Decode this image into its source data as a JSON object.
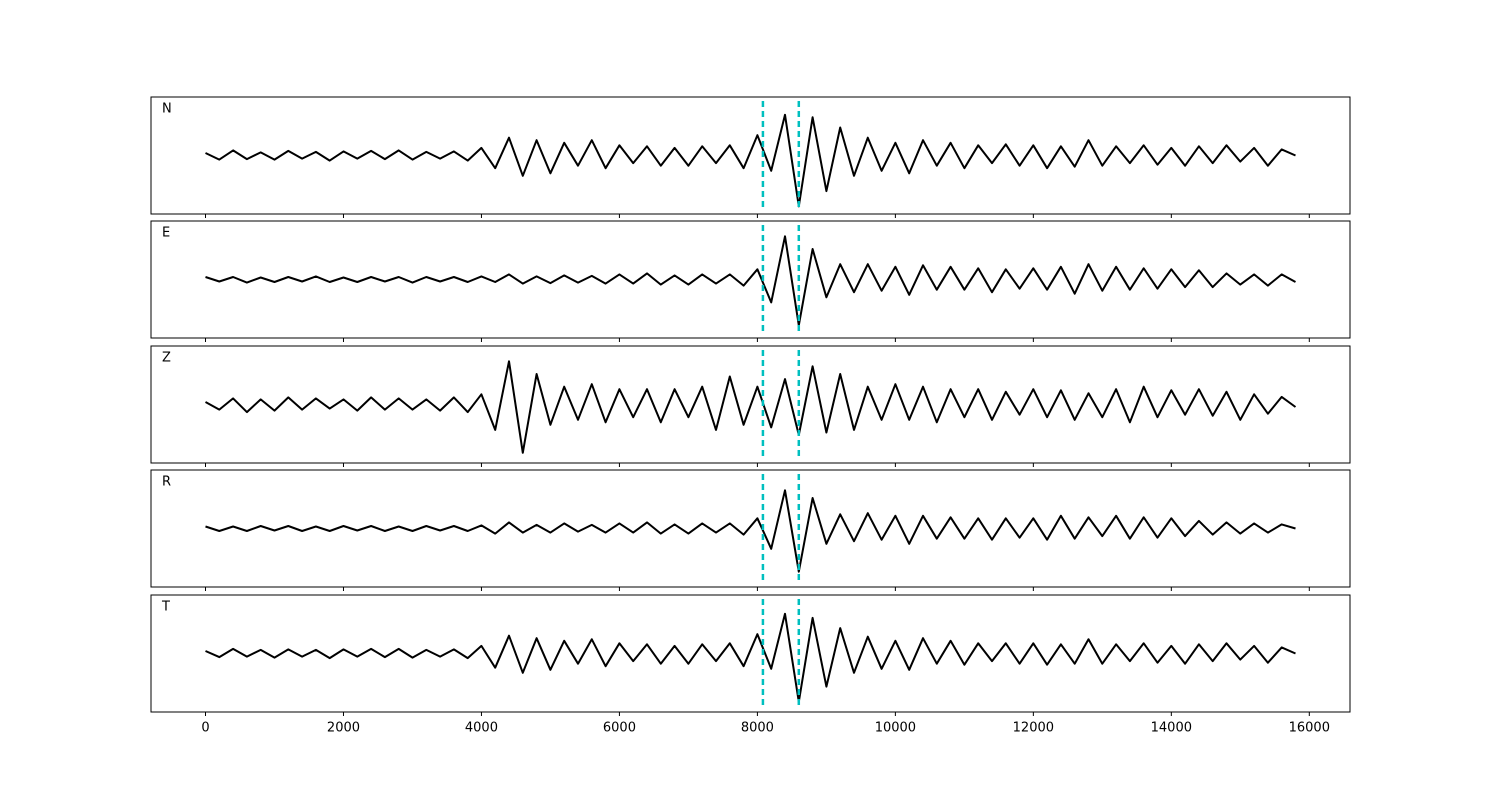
{
  "chart_data": [
    {
      "type": "line",
      "label": "N",
      "color": "#000000",
      "xlim": [
        -790,
        16590
      ],
      "ylim": [
        -1.15,
        1.15
      ],
      "xticks": [
        0,
        2000,
        4000,
        6000,
        8000,
        10000,
        12000,
        14000,
        16000
      ],
      "xtick_labels": false,
      "vlines": [
        8080,
        8600
      ],
      "vline_color": "#00bfbf",
      "x": [
        0,
        200,
        400,
        600,
        800,
        1000,
        1200,
        1400,
        1600,
        1800,
        2000,
        2200,
        2400,
        2600,
        2800,
        3000,
        3200,
        3400,
        3600,
        3800,
        4000,
        4200,
        4400,
        4600,
        4800,
        5000,
        5200,
        5400,
        5600,
        5800,
        6000,
        6200,
        6400,
        6600,
        6800,
        7000,
        7200,
        7400,
        7600,
        7800,
        8000,
        8200,
        8400,
        8600,
        8800,
        9000,
        9200,
        9400,
        9600,
        9800,
        10000,
        10200,
        10400,
        10600,
        10800,
        11000,
        11200,
        11400,
        11600,
        11800,
        12000,
        12200,
        12400,
        12600,
        12800,
        13000,
        13200,
        13400,
        13600,
        13800,
        14000,
        14200,
        14400,
        14600,
        14800,
        15000,
        15200,
        15400,
        15600,
        15800
      ],
      "values": [
        0.05,
        -0.08,
        0.1,
        -0.07,
        0.06,
        -0.08,
        0.09,
        -0.06,
        0.07,
        -0.1,
        0.08,
        -0.06,
        0.09,
        -0.07,
        0.1,
        -0.08,
        0.07,
        -0.06,
        0.08,
        -0.1,
        0.15,
        -0.25,
        0.35,
        -0.4,
        0.3,
        -0.35,
        0.25,
        -0.2,
        0.3,
        -0.25,
        0.2,
        -0.15,
        0.18,
        -0.2,
        0.15,
        -0.2,
        0.18,
        -0.15,
        0.2,
        -0.25,
        0.4,
        -0.3,
        0.8,
        -1.0,
        0.75,
        -0.7,
        0.55,
        -0.4,
        0.35,
        -0.3,
        0.25,
        -0.35,
        0.3,
        -0.2,
        0.25,
        -0.25,
        0.2,
        -0.15,
        0.22,
        -0.2,
        0.2,
        -0.25,
        0.18,
        -0.22,
        0.3,
        -0.2,
        0.18,
        -0.15,
        0.2,
        -0.18,
        0.15,
        -0.2,
        0.18,
        -0.15,
        0.2,
        -0.12,
        0.15,
        -0.2,
        0.12,
        0.0
      ]
    },
    {
      "type": "line",
      "label": "E",
      "color": "#000000",
      "xlim": [
        -790,
        16590
      ],
      "ylim": [
        -1.15,
        1.15
      ],
      "xticks": [
        0,
        2000,
        4000,
        6000,
        8000,
        10000,
        12000,
        14000,
        16000
      ],
      "xtick_labels": false,
      "vlines": [
        8080,
        8600
      ],
      "vline_color": "#00bfbf",
      "x": [
        0,
        200,
        400,
        600,
        800,
        1000,
        1200,
        1400,
        1600,
        1800,
        2000,
        2200,
        2400,
        2600,
        2800,
        3000,
        3200,
        3400,
        3600,
        3800,
        4000,
        4200,
        4400,
        4600,
        4800,
        5000,
        5200,
        5400,
        5600,
        5800,
        6000,
        6200,
        6400,
        6600,
        6800,
        7000,
        7200,
        7400,
        7600,
        7800,
        8000,
        8200,
        8400,
        8600,
        8800,
        9000,
        9200,
        9400,
        9600,
        9800,
        10000,
        10200,
        10400,
        10600,
        10800,
        11000,
        11200,
        11400,
        11600,
        11800,
        12000,
        12200,
        12400,
        12600,
        12800,
        13000,
        13200,
        13400,
        13600,
        13800,
        14000,
        14200,
        14400,
        14600,
        14800,
        15000,
        15200,
        15400,
        15600,
        15800
      ],
      "values": [
        0.05,
        -0.04,
        0.05,
        -0.06,
        0.04,
        -0.05,
        0.05,
        -0.04,
        0.06,
        -0.05,
        0.04,
        -0.05,
        0.05,
        -0.04,
        0.05,
        -0.06,
        0.05,
        -0.04,
        0.05,
        -0.05,
        0.06,
        -0.05,
        0.1,
        -0.08,
        0.06,
        -0.07,
        0.08,
        -0.06,
        0.07,
        -0.08,
        0.1,
        -0.08,
        0.12,
        -0.1,
        0.08,
        -0.1,
        0.1,
        -0.08,
        0.1,
        -0.12,
        0.2,
        -0.45,
        0.85,
        -0.9,
        0.6,
        -0.35,
        0.3,
        -0.25,
        0.3,
        -0.22,
        0.25,
        -0.3,
        0.28,
        -0.2,
        0.25,
        -0.2,
        0.22,
        -0.25,
        0.2,
        -0.18,
        0.22,
        -0.2,
        0.25,
        -0.28,
        0.3,
        -0.22,
        0.25,
        -0.2,
        0.22,
        -0.18,
        0.2,
        -0.15,
        0.18,
        -0.15,
        0.12,
        -0.1,
        0.1,
        -0.12,
        0.1,
        -0.05
      ]
    },
    {
      "type": "line",
      "label": "Z",
      "color": "#000000",
      "xlim": [
        -790,
        16590
      ],
      "ylim": [
        -1.15,
        1.15
      ],
      "xticks": [
        0,
        2000,
        4000,
        6000,
        8000,
        10000,
        12000,
        14000,
        16000
      ],
      "xtick_labels": false,
      "vlines": [
        8080,
        8600
      ],
      "vline_color": "#00bfbf",
      "x": [
        0,
        200,
        400,
        600,
        800,
        1000,
        1200,
        1400,
        1600,
        1800,
        2000,
        2200,
        2400,
        2600,
        2800,
        3000,
        3200,
        3400,
        3600,
        3800,
        4000,
        4200,
        4400,
        4600,
        4800,
        5000,
        5200,
        5400,
        5600,
        5800,
        6000,
        6200,
        6400,
        6600,
        6800,
        7000,
        7200,
        7400,
        7600,
        7800,
        8000,
        8200,
        8400,
        8600,
        8800,
        9000,
        9200,
        9400,
        9600,
        9800,
        10000,
        10200,
        10400,
        10600,
        10800,
        11000,
        11200,
        11400,
        11600,
        11800,
        12000,
        12200,
        12400,
        12600,
        12800,
        13000,
        13200,
        13400,
        13600,
        13800,
        14000,
        14200,
        14400,
        14600,
        14800,
        15000,
        15200,
        15400,
        15600,
        15800
      ],
      "values": [
        0.05,
        -0.1,
        0.12,
        -0.15,
        0.1,
        -0.12,
        0.14,
        -0.1,
        0.12,
        -0.08,
        0.1,
        -0.12,
        0.14,
        -0.1,
        0.12,
        -0.1,
        0.1,
        -0.12,
        0.14,
        -0.15,
        0.2,
        -0.5,
        0.85,
        -0.95,
        0.6,
        -0.4,
        0.35,
        -0.3,
        0.4,
        -0.35,
        0.3,
        -0.25,
        0.3,
        -0.35,
        0.3,
        -0.25,
        0.35,
        -0.5,
        0.55,
        -0.4,
        0.35,
        -0.45,
        0.5,
        -0.6,
        0.75,
        -0.55,
        0.6,
        -0.5,
        0.35,
        -0.3,
        0.4,
        -0.3,
        0.35,
        -0.35,
        0.3,
        -0.25,
        0.3,
        -0.3,
        0.25,
        -0.2,
        0.3,
        -0.25,
        0.28,
        -0.3,
        0.22,
        -0.25,
        0.3,
        -0.35,
        0.35,
        -0.25,
        0.28,
        -0.2,
        0.3,
        -0.22,
        0.25,
        -0.3,
        0.2,
        -0.18,
        0.15,
        -0.05
      ]
    },
    {
      "type": "line",
      "label": "R",
      "color": "#000000",
      "xlim": [
        -790,
        16590
      ],
      "ylim": [
        -1.15,
        1.15
      ],
      "xticks": [
        0,
        2000,
        4000,
        6000,
        8000,
        10000,
        12000,
        14000,
        16000
      ],
      "xtick_labels": false,
      "vlines": [
        8080,
        8600
      ],
      "vline_color": "#00bfbf",
      "x": [
        0,
        200,
        400,
        600,
        800,
        1000,
        1200,
        1400,
        1600,
        1800,
        2000,
        2200,
        2400,
        2600,
        2800,
        3000,
        3200,
        3400,
        3600,
        3800,
        4000,
        4200,
        4400,
        4600,
        4800,
        5000,
        5200,
        5400,
        5600,
        5800,
        6000,
        6200,
        6400,
        6600,
        6800,
        7000,
        7200,
        7400,
        7600,
        7800,
        8000,
        8200,
        8400,
        8600,
        8800,
        9000,
        9200,
        9400,
        9600,
        9800,
        10000,
        10200,
        10400,
        10600,
        10800,
        11000,
        11200,
        11400,
        11600,
        11800,
        12000,
        12200,
        12400,
        12600,
        12800,
        13000,
        13200,
        13400,
        13600,
        13800,
        14000,
        14200,
        14400,
        14600,
        14800,
        15000,
        15200,
        15400,
        15600,
        15800
      ],
      "values": [
        0.04,
        -0.05,
        0.04,
        -0.05,
        0.05,
        -0.04,
        0.05,
        -0.05,
        0.04,
        -0.05,
        0.05,
        -0.04,
        0.05,
        -0.05,
        0.04,
        -0.05,
        0.05,
        -0.04,
        0.05,
        -0.05,
        0.06,
        -0.1,
        0.12,
        -0.08,
        0.07,
        -0.08,
        0.1,
        -0.06,
        0.07,
        -0.08,
        0.1,
        -0.08,
        0.12,
        -0.1,
        0.08,
        -0.1,
        0.1,
        -0.08,
        0.1,
        -0.12,
        0.2,
        -0.4,
        0.75,
        -0.85,
        0.6,
        -0.3,
        0.28,
        -0.25,
        0.3,
        -0.22,
        0.25,
        -0.3,
        0.25,
        -0.2,
        0.22,
        -0.2,
        0.2,
        -0.22,
        0.2,
        -0.18,
        0.2,
        -0.22,
        0.25,
        -0.2,
        0.22,
        -0.15,
        0.25,
        -0.2,
        0.22,
        -0.18,
        0.2,
        -0.15,
        0.15,
        -0.12,
        0.12,
        -0.1,
        0.1,
        -0.08,
        0.08,
        0.0
      ]
    },
    {
      "type": "line",
      "label": "T",
      "color": "#000000",
      "xlim": [
        -790,
        16590
      ],
      "ylim": [
        -1.15,
        1.15
      ],
      "xticks": [
        0,
        2000,
        4000,
        6000,
        8000,
        10000,
        12000,
        14000,
        16000
      ],
      "xtick_labels": true,
      "vlines": [
        8080,
        8600
      ],
      "vline_color": "#00bfbf",
      "x": [
        0,
        200,
        400,
        600,
        800,
        1000,
        1200,
        1400,
        1600,
        1800,
        2000,
        2200,
        2400,
        2600,
        2800,
        3000,
        3200,
        3400,
        3600,
        3800,
        4000,
        4200,
        4400,
        4600,
        4800,
        5000,
        5200,
        5400,
        5600,
        5800,
        6000,
        6200,
        6400,
        6600,
        6800,
        7000,
        7200,
        7400,
        7600,
        7800,
        8000,
        8200,
        8400,
        8600,
        8800,
        9000,
        9200,
        9400,
        9600,
        9800,
        10000,
        10200,
        10400,
        10600,
        10800,
        11000,
        11200,
        11400,
        11600,
        11800,
        12000,
        12200,
        12400,
        12600,
        12800,
        13000,
        13200,
        13400,
        13600,
        13800,
        14000,
        14200,
        14400,
        14600,
        14800,
        15000,
        15200,
        15400,
        15600,
        15800
      ],
      "values": [
        0.05,
        -0.07,
        0.09,
        -0.06,
        0.07,
        -0.08,
        0.08,
        -0.06,
        0.07,
        -0.09,
        0.08,
        -0.06,
        0.09,
        -0.07,
        0.09,
        -0.08,
        0.07,
        -0.06,
        0.08,
        -0.09,
        0.15,
        -0.28,
        0.35,
        -0.38,
        0.3,
        -0.32,
        0.25,
        -0.2,
        0.28,
        -0.25,
        0.2,
        -0.15,
        0.18,
        -0.2,
        0.15,
        -0.2,
        0.18,
        -0.15,
        0.2,
        -0.25,
        0.38,
        -0.3,
        0.78,
        -0.95,
        0.7,
        -0.65,
        0.5,
        -0.38,
        0.33,
        -0.3,
        0.25,
        -0.32,
        0.3,
        -0.2,
        0.25,
        -0.22,
        0.2,
        -0.15,
        0.2,
        -0.2,
        0.2,
        -0.22,
        0.18,
        -0.2,
        0.28,
        -0.2,
        0.18,
        -0.15,
        0.2,
        -0.18,
        0.15,
        -0.2,
        0.18,
        -0.15,
        0.2,
        -0.12,
        0.15,
        -0.18,
        0.12,
        0.0
      ]
    }
  ]
}
